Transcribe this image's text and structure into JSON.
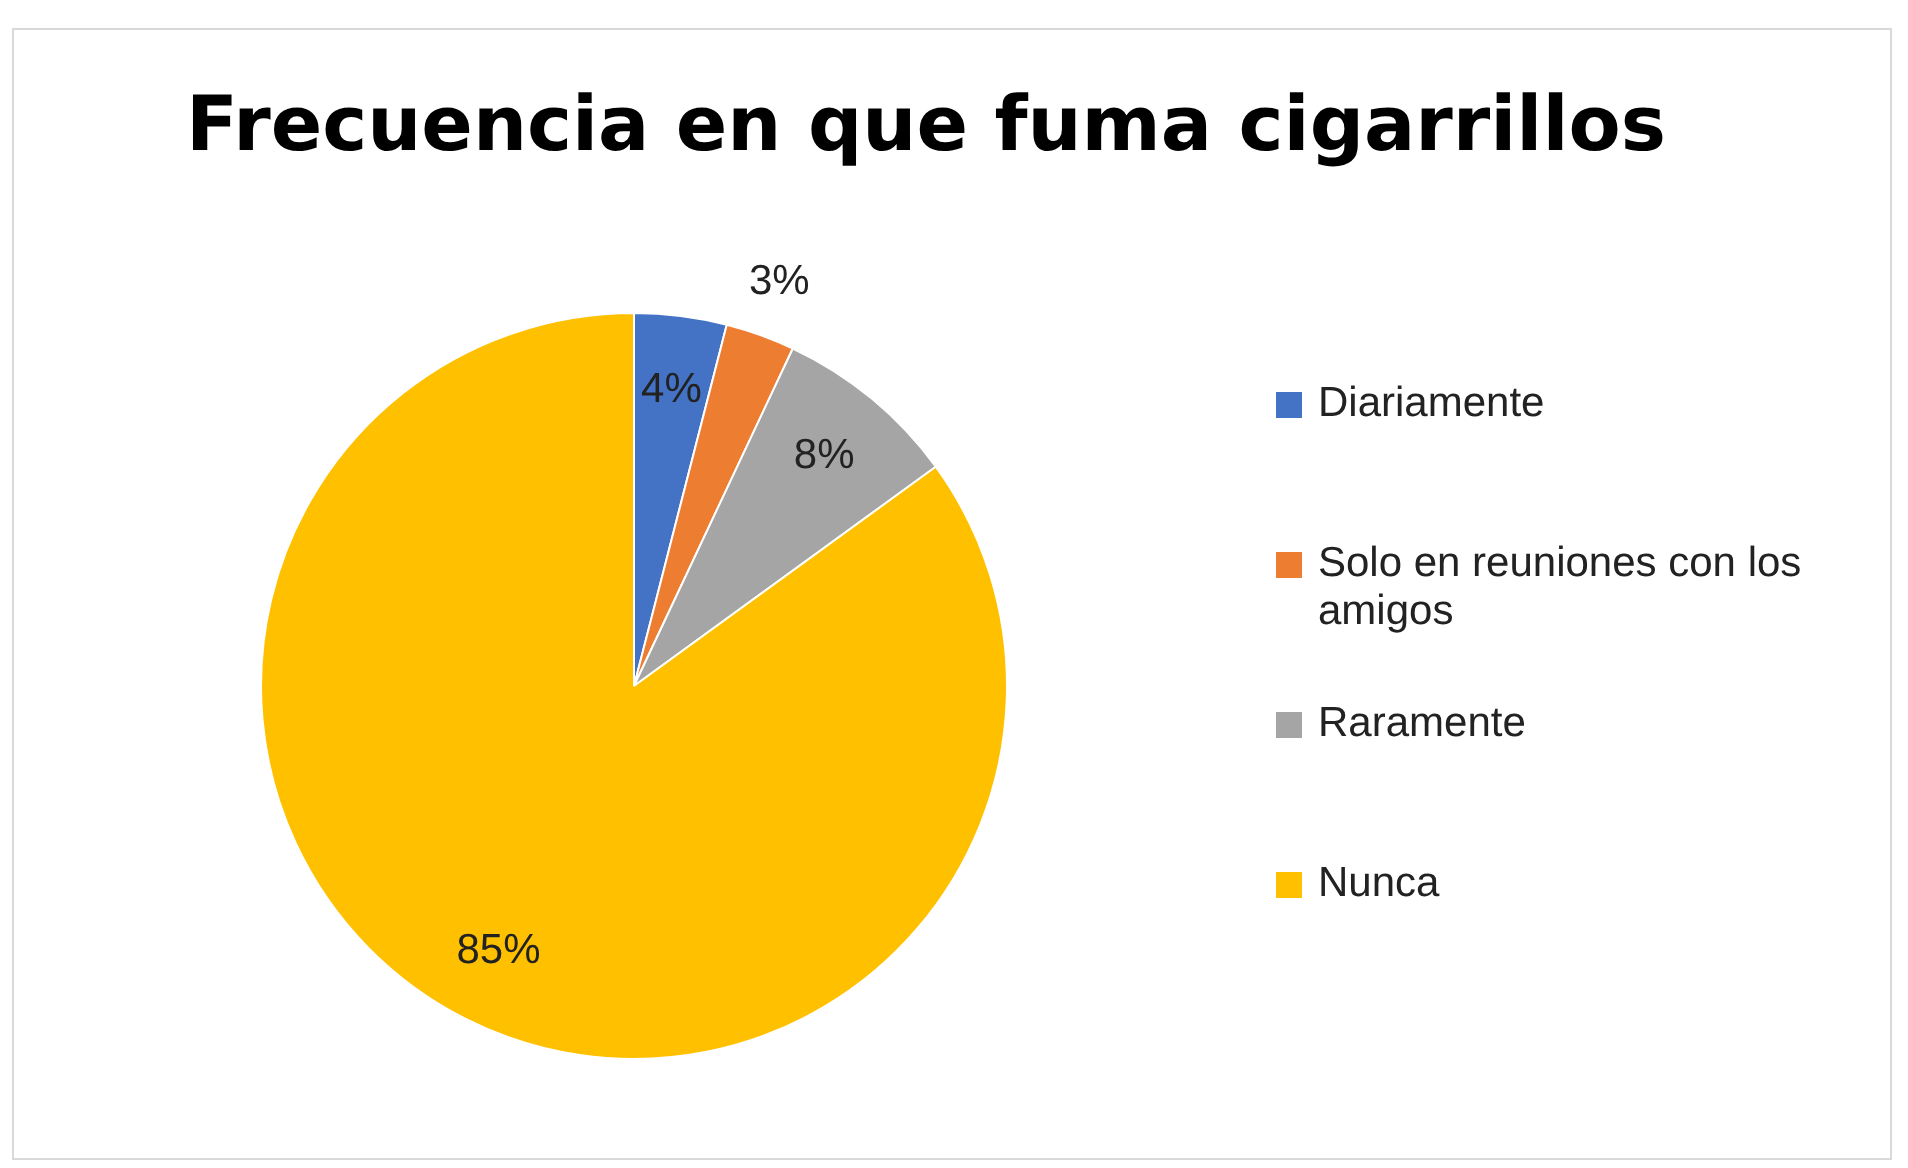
{
  "chart_data": {
    "type": "pie",
    "title": "Frecuencia en que fuma cigarrillos",
    "categories": [
      "Diariamente",
      "Solo en reuniones con los amigos",
      "Raramente",
      "Nunca"
    ],
    "values": [
      4,
      3,
      8,
      85
    ],
    "colors": [
      "#4472c4",
      "#ed7d31",
      "#a5a5a5",
      "#ffc000"
    ],
    "value_labels": [
      "4%",
      "3%",
      "8%",
      "85%"
    ],
    "legend": "right"
  }
}
